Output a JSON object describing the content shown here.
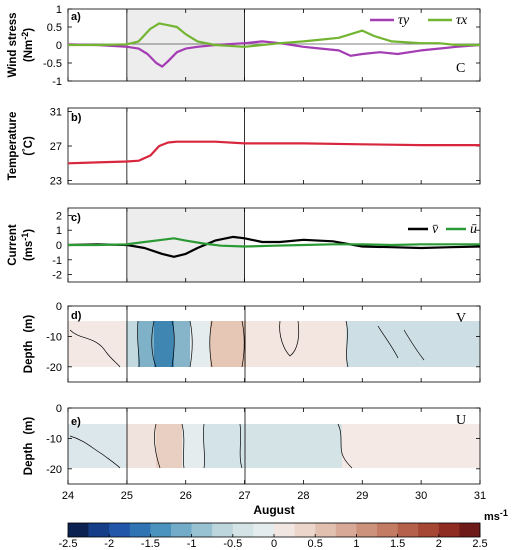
{
  "chart_data": [
    {
      "panel": "a)",
      "type": "line",
      "ylabel": "Wind stress",
      "yunit_base": "(Nm",
      "yunit_exp": "-2",
      "yunit_close": ")",
      "corner_label": "C",
      "ylim": [
        -1,
        1
      ],
      "yticks": [
        "-1",
        "-0.5",
        "0",
        "0.5",
        "1"
      ],
      "series": [
        {
          "name": "τy",
          "color": "#a43cb4",
          "x": [
            24.0,
            24.5,
            25.0,
            25.2,
            25.35,
            25.5,
            25.6,
            25.7,
            25.85,
            26.0,
            26.2,
            26.5,
            27.0,
            27.3,
            27.6,
            28.0,
            28.3,
            28.6,
            28.8,
            29.0,
            29.3,
            29.6,
            30.0,
            30.3,
            30.6,
            31.0
          ],
          "y": [
            0.02,
            0.0,
            -0.05,
            -0.1,
            -0.25,
            -0.5,
            -0.6,
            -0.45,
            -0.2,
            -0.1,
            -0.05,
            0.0,
            0.05,
            0.1,
            0.05,
            -0.05,
            -0.1,
            -0.15,
            -0.3,
            -0.25,
            -0.2,
            -0.25,
            -0.15,
            -0.1,
            -0.05,
            0.0
          ]
        },
        {
          "name": "τx",
          "color": "#73b532",
          "x": [
            24.0,
            24.5,
            25.0,
            25.2,
            25.4,
            25.55,
            25.7,
            25.85,
            26.0,
            26.2,
            26.5,
            27.0,
            27.3,
            27.6,
            28.0,
            28.3,
            28.6,
            28.8,
            29.0,
            29.2,
            29.5,
            30.0,
            30.3,
            30.6,
            31.0
          ],
          "y": [
            0.0,
            0.0,
            0.02,
            0.1,
            0.45,
            0.6,
            0.55,
            0.5,
            0.3,
            0.1,
            0.0,
            -0.05,
            0.0,
            0.05,
            0.1,
            0.15,
            0.2,
            0.3,
            0.4,
            0.25,
            0.1,
            0.05,
            0.05,
            0.0,
            0.0
          ]
        }
      ]
    },
    {
      "panel": "b)",
      "type": "line",
      "ylabel": "Temperature",
      "yunit_base": "(",
      "yunit_deg": "°",
      "yunit_end": "C)",
      "ylim": [
        22.6,
        31.4
      ],
      "yticks": [
        "23",
        "27",
        "31"
      ],
      "series": [
        {
          "color": "#d7263d",
          "x": [
            24.0,
            24.5,
            25.0,
            25.2,
            25.4,
            25.55,
            25.7,
            25.85,
            26.0,
            26.5,
            27.0,
            27.5,
            28.0,
            29.0,
            30.0,
            31.0
          ],
          "y": [
            25.0,
            25.1,
            25.2,
            25.3,
            25.9,
            27.0,
            27.4,
            27.5,
            27.5,
            27.5,
            27.3,
            27.3,
            27.3,
            27.2,
            27.1,
            27.1
          ]
        }
      ]
    },
    {
      "panel": "c)",
      "type": "line",
      "ylabel": "Current",
      "yunit_base": "(ms",
      "yunit_exp": "-1",
      "yunit_close": ")",
      "ylim": [
        -2.5,
        2.5
      ],
      "yticks": [
        "-2",
        "-1",
        "0",
        "1",
        "2"
      ],
      "series": [
        {
          "name": "v̄",
          "color": "#000000",
          "x": [
            24.0,
            24.5,
            25.0,
            25.3,
            25.6,
            25.8,
            26.0,
            26.2,
            26.5,
            26.8,
            27.0,
            27.3,
            27.6,
            28.0,
            28.5,
            29.0,
            29.5,
            30.0,
            30.5,
            31.0
          ],
          "y": [
            0.0,
            0.05,
            0.0,
            -0.2,
            -0.6,
            -0.8,
            -0.6,
            -0.2,
            0.3,
            0.55,
            0.45,
            0.2,
            0.2,
            0.35,
            0.25,
            -0.1,
            -0.15,
            -0.2,
            -0.15,
            -0.1
          ]
        },
        {
          "name": "ū",
          "color": "#2b9a35",
          "x": [
            24.0,
            24.5,
            25.0,
            25.3,
            25.6,
            25.8,
            26.0,
            26.3,
            26.6,
            27.0,
            27.5,
            28.0,
            28.5,
            29.0,
            29.5,
            30.0,
            30.5,
            31.0
          ],
          "y": [
            0.0,
            0.0,
            0.05,
            0.2,
            0.35,
            0.45,
            0.3,
            0.1,
            -0.05,
            -0.1,
            -0.05,
            0.0,
            0.05,
            0.05,
            0.0,
            0.05,
            0.05,
            0.05
          ]
        }
      ]
    },
    {
      "panel": "d)",
      "type": "heatmap",
      "ylabel": "Depth",
      "yunit": "(m)",
      "corner_label": "V",
      "ylim": [
        -25,
        0
      ],
      "yticks": [
        "0",
        "-10",
        "-20"
      ],
      "band_depth": [
        -4,
        -18
      ]
    },
    {
      "panel": "e)",
      "type": "heatmap",
      "ylabel": "Depth",
      "yunit": "(m)",
      "corner_label": "U",
      "ylim": [
        -25,
        0
      ],
      "yticks": [
        "0",
        "-10",
        "-20"
      ],
      "band_depth": [
        -4,
        -18
      ]
    }
  ],
  "x_axis": {
    "xlim": [
      24,
      31
    ],
    "ticks": [
      "24",
      "25",
      "26",
      "27",
      "28",
      "29",
      "30",
      "31"
    ],
    "label": "August",
    "shade_range": [
      25,
      27
    ]
  },
  "colorbar": {
    "unit_base": "ms",
    "unit_exp": "-1",
    "ticks": [
      "-2.5",
      "-2",
      "-1.5",
      "-1",
      "-0.5",
      "0",
      "0.5",
      "1",
      "1.5",
      "2",
      "2.5"
    ],
    "colors": [
      "#0c2352",
      "#163d87",
      "#2156a8",
      "#3174b3",
      "#4b93bf",
      "#72acc8",
      "#98c1d2",
      "#bdd6de",
      "#d3e3e6",
      "#e4ecee",
      "#f1e6e2",
      "#ecd5ca",
      "#e2c0b0",
      "#d8a996",
      "#cd927c",
      "#c37b64",
      "#b5604b",
      "#a54635",
      "#8e2c24",
      "#6e1a18"
    ]
  }
}
